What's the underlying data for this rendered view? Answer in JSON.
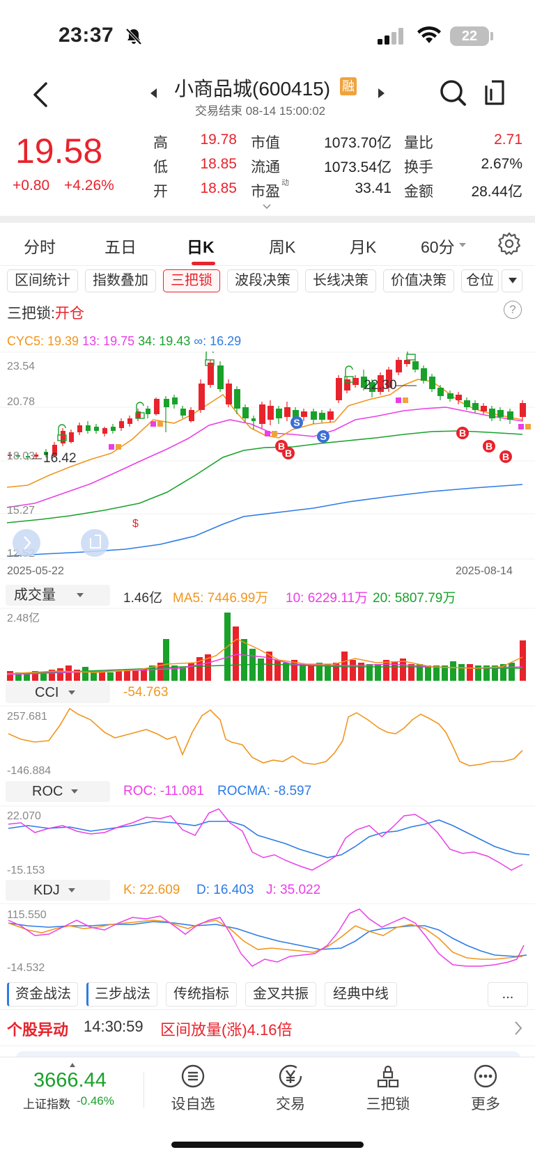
{
  "status_bar": {
    "time": "23:37",
    "battery": "22"
  },
  "header": {
    "title": "小商品城(600415)",
    "badge": "融",
    "trade_status": "交易结束 08-14 15:00:02"
  },
  "price": {
    "last": "19.58",
    "change": "+0.80",
    "change_pct": "+4.26%"
  },
  "quote": [
    {
      "label": "高",
      "value": "19.78",
      "color": "#e8232c"
    },
    {
      "label": "低",
      "value": "18.85",
      "color": "#e8232c"
    },
    {
      "label": "开",
      "value": "18.85",
      "color": "#e8232c"
    },
    {
      "label": "市值",
      "value": "1073.70亿",
      "color": "#222222"
    },
    {
      "label": "流通",
      "value": "1073.54亿",
      "color": "#222222"
    },
    {
      "label": "市盈",
      "sup": "动",
      "value": "33.41",
      "color": "#222222"
    },
    {
      "label": "量比",
      "value": "2.71",
      "color": "#e8232c"
    },
    {
      "label": "换手",
      "value": "2.67%",
      "color": "#222222"
    },
    {
      "label": "金额",
      "value": "28.44亿",
      "color": "#222222"
    }
  ],
  "tabs": [
    "分时",
    "五日",
    "日K",
    "周K",
    "月K",
    "60分"
  ],
  "indicator_chips": [
    "区间统计",
    "指数叠加",
    "三把锁",
    "波段决策",
    "长线决策",
    "价值决策",
    "仓位"
  ],
  "sanbasuo": {
    "label": "三把锁:",
    "status": "开仓"
  },
  "ma": {
    "cyc5": "CYC5: 19.39",
    "c13": "13: 19.75",
    "c34": "34: 19.43",
    "cinf": "∞: 16.29"
  },
  "kline": {
    "y_labels": [
      "23.54",
      "20.78",
      "18.03",
      "15.27",
      "12.52"
    ],
    "start_date": "2025-05-22",
    "end_date": "2025-08-14",
    "high_note": "22.30",
    "low_note": "16.42",
    "signals": [
      "S",
      "S",
      "B",
      "B",
      "B",
      "B",
      "B"
    ]
  },
  "volume": {
    "name": "成交量",
    "current": "1.46亿",
    "ma5": "MA5: 7446.99万",
    "ma10": "10: 6229.11万",
    "ma20": "20: 5807.79万",
    "max_label": "2.48亿"
  },
  "cci": {
    "name": "CCI",
    "value": "-54.763",
    "max": "257.681",
    "min": "-146.884"
  },
  "roc": {
    "name": "ROC",
    "roc": "ROC: -11.081",
    "rocma": "ROCMA: -8.597",
    "max": "22.070",
    "min": "-15.153"
  },
  "kdj": {
    "name": "KDJ",
    "k": "K: 22.609",
    "d": "D: 16.403",
    "j": "J: 35.022",
    "max": "115.550",
    "min": "-14.532"
  },
  "strategy_tabs": [
    "资金战法",
    "三步战法",
    "传统指标",
    "金叉共振",
    "经典中线",
    "..."
  ],
  "alert": {
    "title": "个股异动",
    "time": "14:30:59",
    "text": "区间放量(涨)4.16倍"
  },
  "index": {
    "value": "3666.44",
    "name": "上证指数",
    "change": "-0.46%"
  },
  "nav": [
    "设自选",
    "交易",
    "三把锁",
    "更多"
  ],
  "colors": {
    "up": "#e8232c",
    "down": "#19a12a",
    "cyc5": "#f0961e",
    "c13": "#ea3ee6",
    "c34": "#19a12a",
    "cinf": "#2c7be5"
  }
}
